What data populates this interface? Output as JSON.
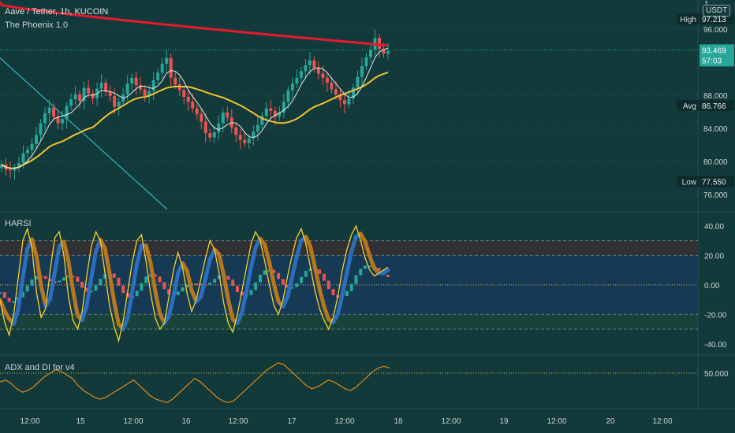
{
  "header": {
    "title": "Aave / Tether, 1h, KUCOIN",
    "indicator": "The Phoenix 1.0",
    "currency": "USDT",
    "currency_top": "1"
  },
  "panels": {
    "harsi": "HARSI",
    "adx": "ADX and DI for v4"
  },
  "labels": {
    "high": "High",
    "avg": "Avg",
    "low": "Low"
  },
  "price_marks": {
    "high": "97.213",
    "last": "93.469",
    "countdown": "57:03",
    "avg": "86.766",
    "low": "77.550"
  },
  "colors": {
    "background": "#133a3a",
    "up": "#27a69a",
    "down": "#ef5350",
    "ema_red": "#e8192c",
    "ema_yellow": "#f2c12e",
    "ema_white": "#e8e8e8",
    "trendline": "#2bb5c0",
    "harsi_blue": "#2a6fbf",
    "harsi_orange": "#b8761e",
    "rsi_yellow": "#f5d12a",
    "adx_orange": "#e08a1a"
  },
  "chart_data": [
    {
      "type": "candlestick",
      "title": "Aave / Tether, 1h, KUCOIN",
      "y_ticks": [
        96.0,
        88.0,
        84.0,
        80.0,
        76.0
      ],
      "ylim": [
        74.0,
        99.5
      ],
      "x_ticks": [
        "12:00",
        "15",
        "12:00",
        "16",
        "12:00",
        "17",
        "12:00",
        "18",
        "12:00",
        "19",
        "12:00",
        "20",
        "12:00"
      ],
      "series": [
        {
          "name": "close",
          "values": [
            79.6,
            79.0,
            78.9,
            79.2,
            79.8,
            81.0,
            81.4,
            82.1,
            83.2,
            84.6,
            85.8,
            86.5,
            85.4,
            84.6,
            85.1,
            86.7,
            87.5,
            88.1,
            87.3,
            88.9,
            88.2,
            87.6,
            88.8,
            89.5,
            88.4,
            87.9,
            86.6,
            87.2,
            88.1,
            89.4,
            90.1,
            89.2,
            88.7,
            87.9,
            88.5,
            89.8,
            90.7,
            91.8,
            92.5,
            90.1,
            89.3,
            88.6,
            87.8,
            87.2,
            86.4,
            85.7,
            84.8,
            83.4,
            82.9,
            83.5,
            84.6,
            85.9,
            85.3,
            84.1,
            83.2,
            82.6,
            82.2,
            82.8,
            83.6,
            84.4,
            85.5,
            86.4,
            86.1,
            85.4,
            85.9,
            87.2,
            88.6,
            89.4,
            90.1,
            90.9,
            91.6,
            92.2,
            91.3,
            90.6,
            90.1,
            89.5,
            88.7,
            88.1,
            87.4,
            86.9,
            87.6,
            88.9,
            90.2,
            91.5,
            92.6,
            93.5,
            94.9,
            93.6,
            93.0,
            93.3
          ]
        }
      ]
    },
    {
      "type": "line",
      "title": "HARSI",
      "y_ticks": [
        40.0,
        20.0,
        0.0,
        -20.0,
        -40.0
      ],
      "ylim": [
        -47,
        49
      ],
      "series": [
        {
          "name": "",
          "values": [
            -10,
            -25,
            -34,
            -20,
            5,
            30,
            38,
            25,
            -5,
            -22,
            -16,
            10,
            32,
            36,
            20,
            -8,
            -24,
            -30,
            -18,
            6,
            26,
            36,
            30,
            8,
            -14,
            -28,
            -38,
            -24,
            -4,
            16,
            30,
            34,
            16,
            -6,
            -22,
            -30,
            -26,
            -8,
            10,
            22,
            12,
            -6,
            -18,
            -10,
            4,
            18,
            30,
            24,
            8,
            -12,
            -26,
            -32,
            -20,
            -4,
            12,
            28,
            36,
            30,
            16,
            0,
            -14,
            -20,
            -10,
            6,
            20,
            32,
            38,
            28,
            12,
            -4,
            -16,
            -24,
            -30,
            -22,
            -8,
            10,
            24,
            34,
            40,
            30,
            18,
            10,
            6,
            8,
            10,
            12
          ]
        }
      ]
    },
    {
      "type": "line",
      "title": "ADX and DI for v4",
      "y_ticks": [
        50.0
      ],
      "ylim": [
        10,
        70
      ],
      "series": [
        {
          "name": "",
          "values": [
            40,
            42,
            38,
            32,
            28,
            30,
            34,
            40,
            46,
            50,
            54,
            52,
            48,
            44,
            36,
            30,
            26,
            22,
            20,
            22,
            26,
            30,
            34,
            38,
            42,
            36,
            30,
            24,
            20,
            18,
            16,
            20,
            26,
            32,
            38,
            44,
            40,
            34,
            28,
            22,
            18,
            16,
            18,
            24,
            30,
            36,
            42,
            48,
            54,
            58,
            62,
            60,
            54,
            48,
            42,
            36,
            32,
            34,
            38,
            42,
            40,
            36,
            32,
            30,
            34,
            40,
            46,
            52,
            56,
            58,
            56
          ]
        }
      ]
    }
  ]
}
